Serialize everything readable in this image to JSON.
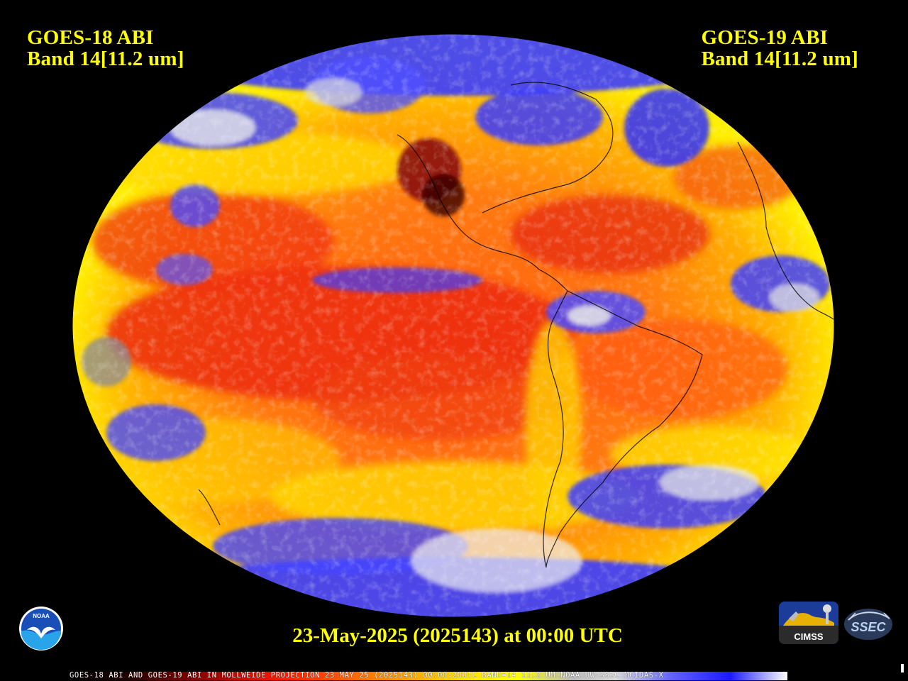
{
  "left_header": {
    "line1": "GOES-18 ABI",
    "line2": "Band 14[11.2 um]"
  },
  "right_header": {
    "line1": "GOES-19 ABI",
    "line2": "Band 14[11.2 um]"
  },
  "timestamp": "23-May-2025 (2025143) at 00:00 UTC",
  "colorbar_caption": "GOES-18 ABI AND GOES-19 ABI IN MOLLWEIDE PROJECTION 23 MAY 25 (2025143) 00:00:20UTC BAND=14 11.2 UM NOAA UW-SSEC MCIDAS-X",
  "logos": {
    "noaa": "NOAA",
    "cimss": "CIMSS",
    "ssec": "SSEC"
  },
  "colors": {
    "label_yellow": "#ffff00",
    "background": "#000000",
    "warm_red": "#e8230f",
    "orange": "#ff8a00",
    "yellow": "#ffee00",
    "cloud_blue": "#3a3aff",
    "cloud_white": "#ededed",
    "hot_dark_red": "#5a0000"
  }
}
